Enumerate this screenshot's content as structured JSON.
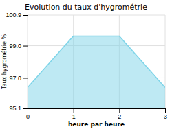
{
  "chart_data": {
    "type": "area",
    "title": "Evolution du taux d'hygrométrie",
    "xlabel": "heure par heure",
    "ylabel": "Taux hygrométrie %",
    "x": [
      0,
      1,
      2,
      3
    ],
    "y": [
      96.4,
      99.6,
      99.6,
      96.4
    ],
    "color": "#7dd4e8",
    "xlim": [
      0,
      3
    ],
    "ylim": [
      95.1,
      100.9
    ],
    "xticks": [
      0,
      1,
      2,
      3
    ],
    "yticks": [
      95.1,
      {
        "value": 97.0,
        "label": "97.0"
      },
      {
        "value": 99.0,
        "label": "99.0"
      },
      100.9
    ],
    "grid": true
  }
}
